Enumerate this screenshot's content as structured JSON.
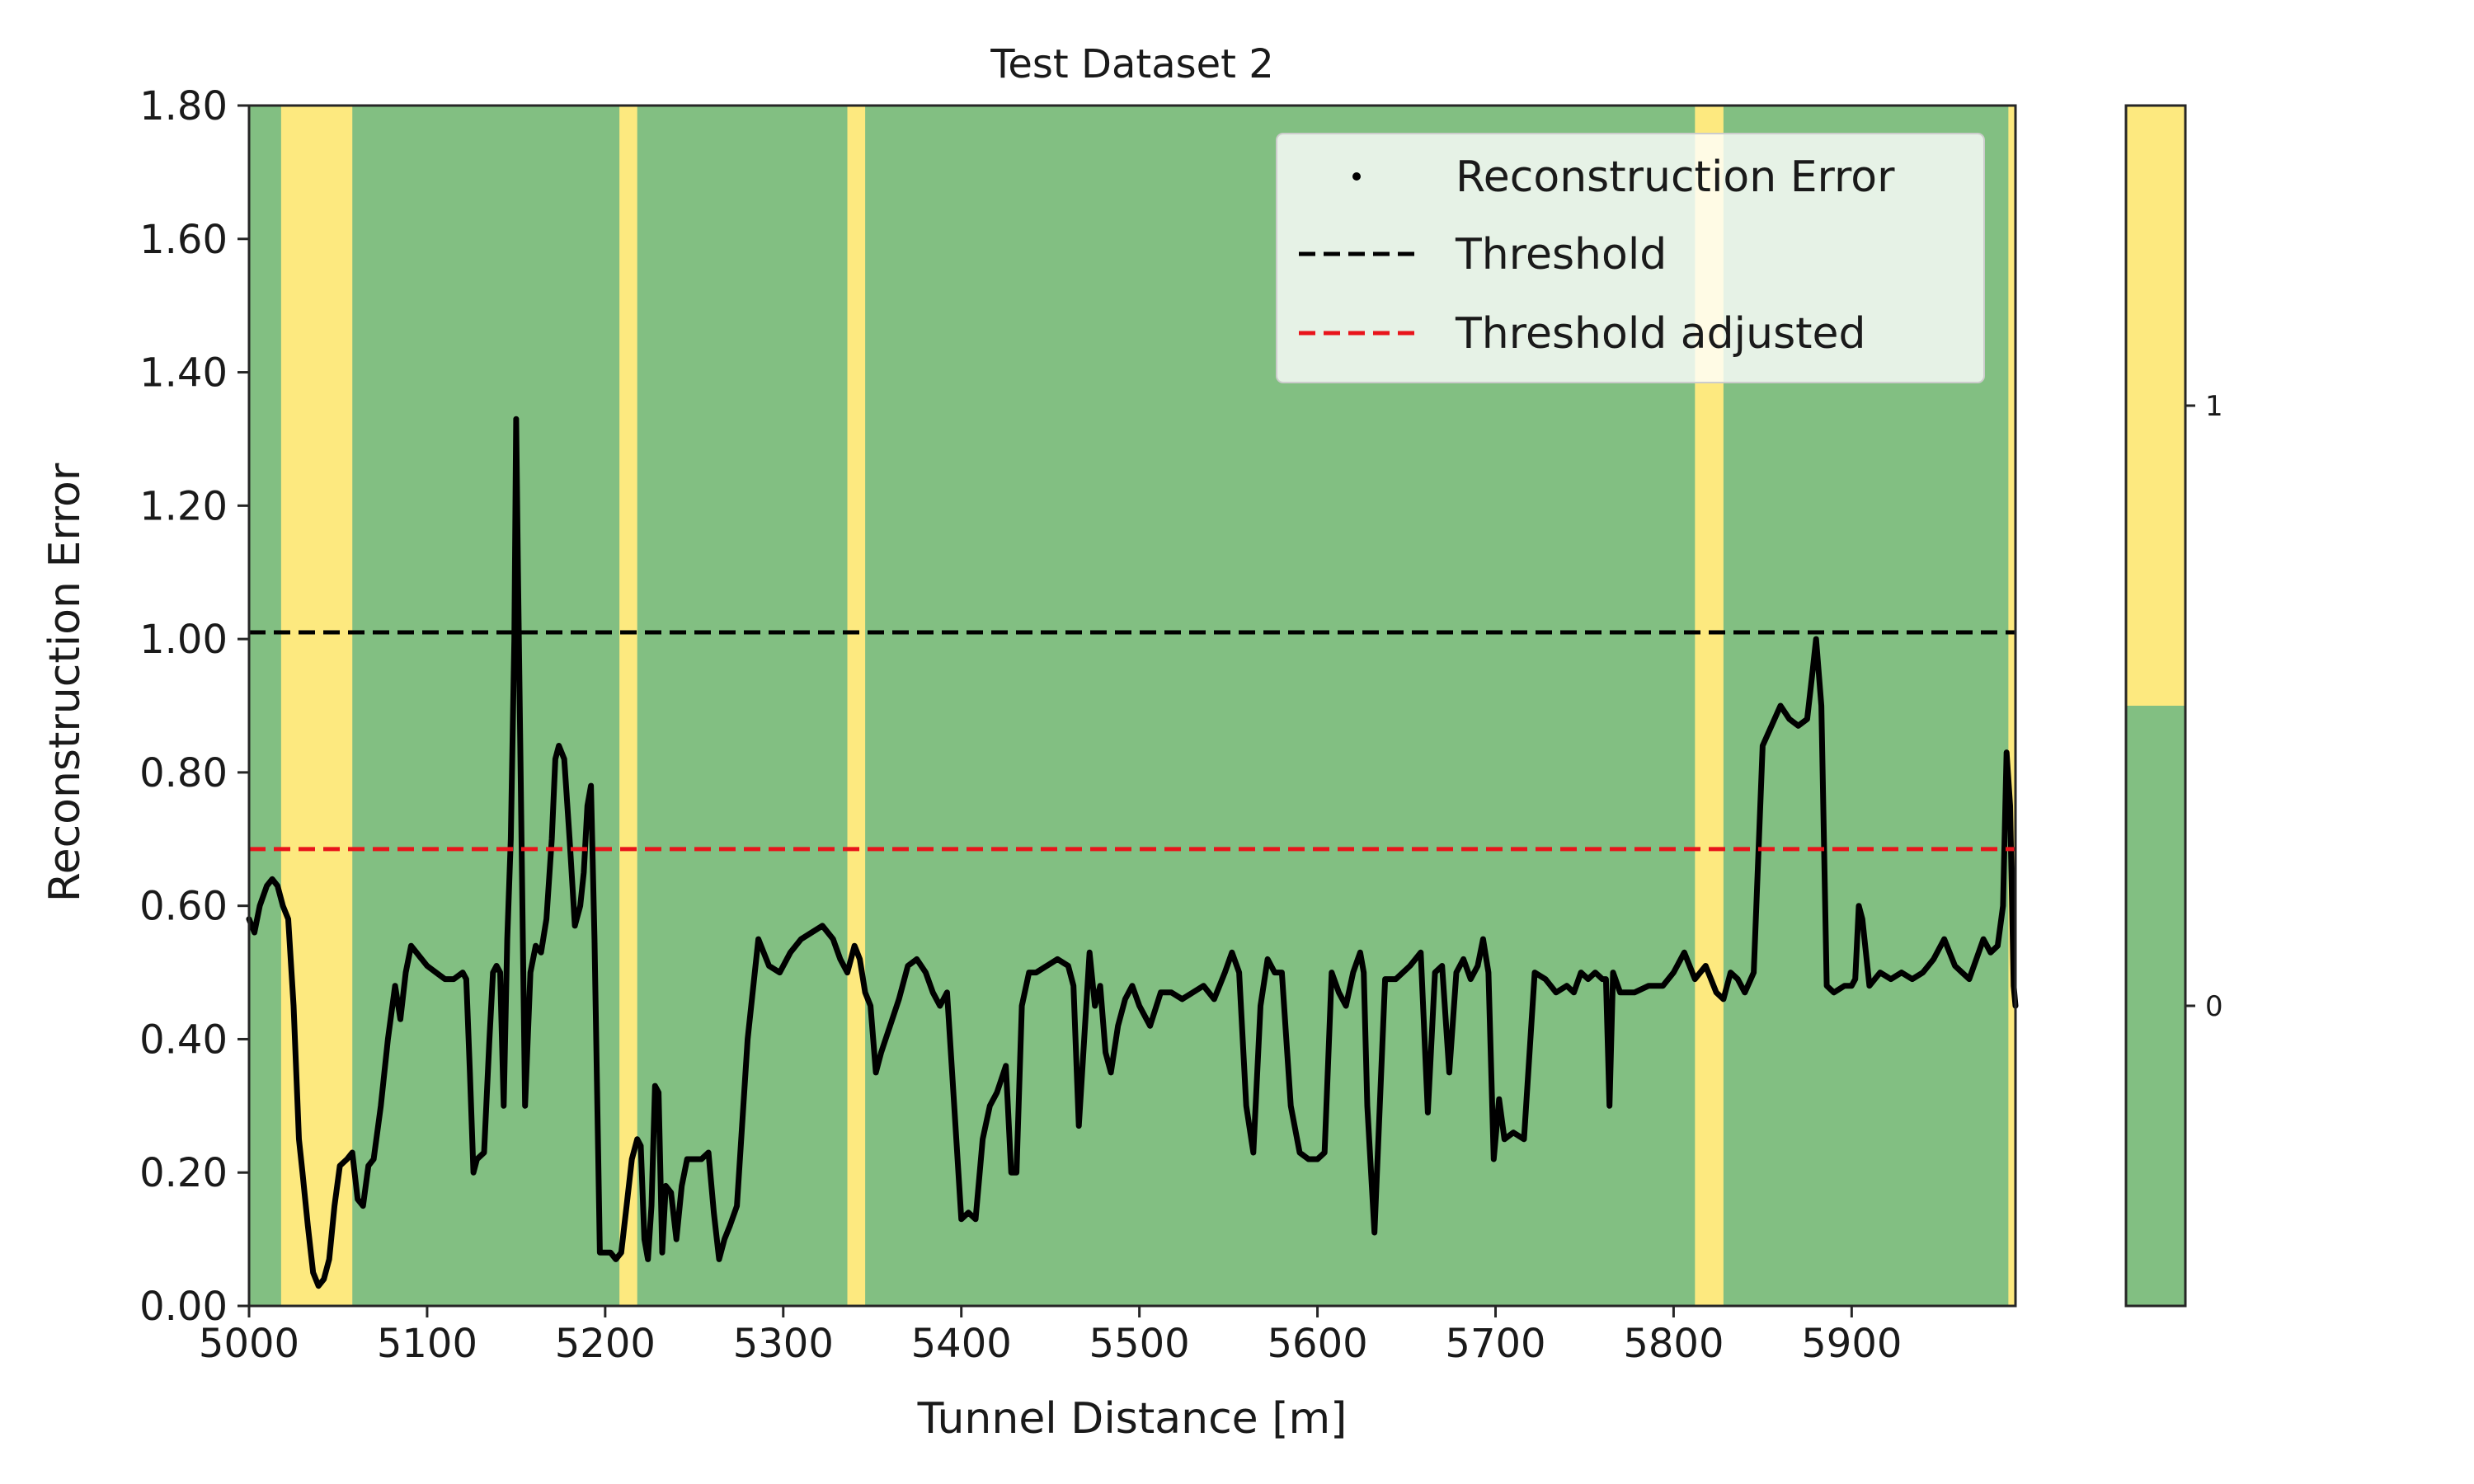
{
  "chart_data": {
    "type": "line",
    "title": "Test Dataset 2",
    "xlabel": "Tunnel Distance [m]",
    "ylabel": "Reconstruction Error",
    "xlim": [
      5000,
      5992
    ],
    "ylim": [
      0,
      1.8
    ],
    "x_ticks": [
      "5000",
      "5100",
      "5200",
      "5300",
      "5400",
      "5500",
      "5600",
      "5700",
      "5800",
      "5900"
    ],
    "x_tick_values": [
      5000,
      5100,
      5200,
      5300,
      5400,
      5500,
      5600,
      5700,
      5800,
      5900
    ],
    "y_ticks": [
      "0.00",
      "0.20",
      "0.40",
      "0.60",
      "0.80",
      "1.00",
      "1.20",
      "1.40",
      "1.60",
      "1.80"
    ],
    "y_tick_values": [
      0,
      0.2,
      0.4,
      0.6,
      0.8,
      1.0,
      1.2,
      1.4,
      1.6,
      1.8
    ],
    "grid": false,
    "legend_position": "top-right",
    "legend": [
      {
        "label": "Reconstruction Error",
        "style": "marker"
      },
      {
        "label": "Threshold",
        "style": "dashed",
        "color": "#000000"
      },
      {
        "label": "Threshold adjusted",
        "style": "dashed",
        "color": "#e8141b"
      }
    ],
    "colors": {
      "class_0": "#82bf82",
      "class_1": "#fde97f",
      "series": "#000000",
      "threshold": "#000000",
      "threshold_adjusted": "#e8141b"
    },
    "threshold": 1.01,
    "threshold_adjusted": 0.685,
    "anomaly_bands": [
      [
        5018,
        5058
      ],
      [
        5208,
        5218
      ],
      [
        5336,
        5346
      ],
      [
        5812,
        5828
      ],
      [
        5988,
        5992
      ]
    ],
    "colorbar": {
      "ticks": [
        "0",
        "1"
      ],
      "values": [
        0,
        1
      ],
      "range": [
        -0.5,
        1.5
      ]
    },
    "series": [
      {
        "name": "Reconstruction Error",
        "x": [
          5000,
          5003,
          5006,
          5010,
          5013,
          5016,
          5019,
          5022,
          5025,
          5028,
          5030,
          5033,
          5036,
          5039,
          5042,
          5045,
          5048,
          5051,
          5055,
          5058,
          5061,
          5064,
          5067,
          5070,
          5074,
          5078,
          5082,
          5085,
          5088,
          5091,
          5094,
          5100,
          5105,
          5110,
          5115,
          5120,
          5122,
          5124,
          5126,
          5128,
          5132,
          5135,
          5137,
          5139,
          5141,
          5143,
          5145,
          5147,
          5149,
          5150,
          5151,
          5153,
          5155,
          5158,
          5161,
          5164,
          5167,
          5170,
          5172,
          5174,
          5177,
          5180,
          5183,
          5186,
          5188,
          5190,
          5192,
          5194,
          5197,
          5200,
          5203,
          5206,
          5209,
          5212,
          5215,
          5218,
          5220,
          5222,
          5224,
          5226,
          5228,
          5230,
          5232,
          5234,
          5237,
          5240,
          5243,
          5246,
          5250,
          5254,
          5258,
          5261,
          5264,
          5267,
          5270,
          5274,
          5280,
          5286,
          5292,
          5298,
          5304,
          5310,
          5316,
          5322,
          5328,
          5332,
          5336,
          5340,
          5343,
          5346,
          5349,
          5352,
          5355,
          5360,
          5365,
          5370,
          5375,
          5380,
          5384,
          5388,
          5392,
          5396,
          5400,
          5404,
          5408,
          5412,
          5416,
          5420,
          5425,
          5428,
          5431,
          5434,
          5438,
          5442,
          5448,
          5454,
          5460,
          5463,
          5466,
          5469,
          5472,
          5475,
          5478,
          5481,
          5484,
          5488,
          5492,
          5496,
          5500,
          5506,
          5512,
          5518,
          5524,
          5530,
          5536,
          5542,
          5548,
          5552,
          5556,
          5560,
          5564,
          5568,
          5572,
          5576,
          5580,
          5585,
          5590,
          5595,
          5600,
          5604,
          5608,
          5612,
          5616,
          5620,
          5624,
          5626,
          5628,
          5632,
          5638,
          5644,
          5648,
          5652,
          5655,
          5658,
          5662,
          5666,
          5670,
          5674,
          5678,
          5682,
          5686,
          5690,
          5693,
          5696,
          5699,
          5702,
          5705,
          5710,
          5716,
          5722,
          5728,
          5734,
          5740,
          5744,
          5748,
          5752,
          5756,
          5760,
          5762,
          5764,
          5766,
          5770,
          5778,
          5786,
          5794,
          5800,
          5806,
          5812,
          5818,
          5824,
          5828,
          5832,
          5836,
          5840,
          5845,
          5850,
          5855,
          5860,
          5865,
          5870,
          5875,
          5878,
          5880,
          5883,
          5886,
          5890,
          5896,
          5900,
          5902,
          5904,
          5906,
          5910,
          5916,
          5922,
          5928,
          5934,
          5940,
          5946,
          5952,
          5958,
          5962,
          5966,
          5970,
          5974,
          5978,
          5982,
          5985,
          5987,
          5989,
          5991,
          5992
        ],
        "y": [
          0.58,
          0.56,
          0.6,
          0.63,
          0.64,
          0.63,
          0.6,
          0.58,
          0.45,
          0.25,
          0.2,
          0.12,
          0.05,
          0.03,
          0.04,
          0.07,
          0.15,
          0.21,
          0.22,
          0.23,
          0.16,
          0.15,
          0.21,
          0.22,
          0.3,
          0.4,
          0.48,
          0.43,
          0.5,
          0.54,
          0.53,
          0.51,
          0.5,
          0.49,
          0.49,
          0.5,
          0.49,
          0.35,
          0.2,
          0.22,
          0.23,
          0.4,
          0.5,
          0.51,
          0.5,
          0.3,
          0.55,
          0.7,
          1.0,
          1.33,
          1.1,
          0.7,
          0.3,
          0.5,
          0.54,
          0.53,
          0.58,
          0.7,
          0.82,
          0.84,
          0.82,
          0.7,
          0.57,
          0.6,
          0.65,
          0.75,
          0.78,
          0.55,
          0.08,
          0.08,
          0.08,
          0.07,
          0.08,
          0.15,
          0.22,
          0.25,
          0.24,
          0.1,
          0.07,
          0.15,
          0.33,
          0.32,
          0.08,
          0.18,
          0.17,
          0.1,
          0.18,
          0.22,
          0.22,
          0.22,
          0.23,
          0.14,
          0.07,
          0.1,
          0.12,
          0.15,
          0.4,
          0.55,
          0.51,
          0.5,
          0.53,
          0.55,
          0.56,
          0.57,
          0.55,
          0.52,
          0.5,
          0.54,
          0.52,
          0.47,
          0.45,
          0.35,
          0.38,
          0.42,
          0.46,
          0.51,
          0.52,
          0.5,
          0.47,
          0.45,
          0.47,
          0.3,
          0.13,
          0.14,
          0.13,
          0.25,
          0.3,
          0.32,
          0.36,
          0.2,
          0.2,
          0.45,
          0.5,
          0.5,
          0.51,
          0.52,
          0.51,
          0.48,
          0.27,
          0.4,
          0.53,
          0.45,
          0.48,
          0.38,
          0.35,
          0.42,
          0.46,
          0.48,
          0.45,
          0.42,
          0.47,
          0.47,
          0.46,
          0.47,
          0.48,
          0.46,
          0.5,
          0.53,
          0.5,
          0.3,
          0.23,
          0.45,
          0.52,
          0.5,
          0.5,
          0.3,
          0.23,
          0.22,
          0.22,
          0.23,
          0.5,
          0.47,
          0.45,
          0.5,
          0.53,
          0.5,
          0.3,
          0.11,
          0.49,
          0.49,
          0.5,
          0.51,
          0.52,
          0.53,
          0.29,
          0.5,
          0.51,
          0.35,
          0.5,
          0.52,
          0.49,
          0.51,
          0.55,
          0.5,
          0.22,
          0.31,
          0.25,
          0.26,
          0.25,
          0.5,
          0.49,
          0.47,
          0.48,
          0.47,
          0.5,
          0.49,
          0.5,
          0.49,
          0.49,
          0.3,
          0.5,
          0.47,
          0.47,
          0.48,
          0.48,
          0.5,
          0.53,
          0.49,
          0.51,
          0.47,
          0.46,
          0.5,
          0.49,
          0.47,
          0.5,
          0.84,
          0.87,
          0.9,
          0.88,
          0.87,
          0.88,
          0.95,
          1.0,
          0.9,
          0.48,
          0.47,
          0.48,
          0.48,
          0.49,
          0.6,
          0.58,
          0.48,
          0.5,
          0.49,
          0.5,
          0.49,
          0.5,
          0.52,
          0.55,
          0.51,
          0.5,
          0.49,
          0.52,
          0.55,
          0.53,
          0.54,
          0.6,
          0.83,
          0.75,
          0.48,
          0.45
        ]
      }
    ]
  }
}
